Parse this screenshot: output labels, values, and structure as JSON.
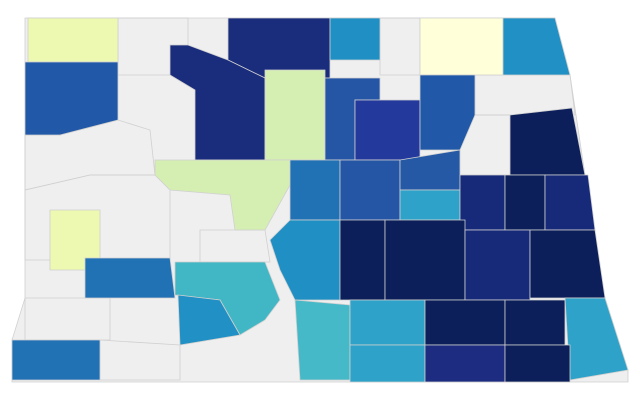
{
  "map": {
    "background_color": "#efefef",
    "regions": [
      {
        "color": "#edf8b1"
      },
      {
        "color": "#1a2c7c"
      },
      {
        "color": "#1a2c7c"
      },
      {
        "color": "#2158a8"
      },
      {
        "color": "#2090c4"
      },
      {
        "color": "#ffffd9"
      },
      {
        "color": "#2190c4"
      },
      {
        "color": "#d5efb3"
      },
      {
        "color": "#2555a5"
      },
      {
        "color": "#24399c"
      },
      {
        "color": "#2158a8"
      },
      {
        "color": "#0c1f5a"
      },
      {
        "color": "#d5efb3"
      },
      {
        "color": "#2171b5"
      },
      {
        "color": "#2555a5"
      },
      {
        "color": "#2558a5"
      },
      {
        "color": "#2ea2c8"
      },
      {
        "color": "#172a7a"
      },
      {
        "color": "#0c1f5a"
      },
      {
        "color": "#172a7a"
      },
      {
        "color": "#edf8b1"
      },
      {
        "color": "#2171b5"
      },
      {
        "color": "#41b6c4"
      },
      {
        "color": "#2090c4"
      },
      {
        "color": "#0c1f5a"
      },
      {
        "color": "#0c1f5a"
      },
      {
        "color": "#172a7a"
      },
      {
        "color": "#0c1f5a"
      },
      {
        "color": "#2190c4"
      },
      {
        "color": "#45b9c8"
      },
      {
        "color": "#2ea2c8"
      },
      {
        "color": "#0c1f5a"
      },
      {
        "color": "#0c1f5a"
      },
      {
        "color": "#2ea2c8"
      },
      {
        "color": "#2171b5"
      },
      {
        "color": "#2ea2c8"
      },
      {
        "color": "#1d2c80"
      },
      {
        "color": "#0c1f5a"
      }
    ]
  }
}
